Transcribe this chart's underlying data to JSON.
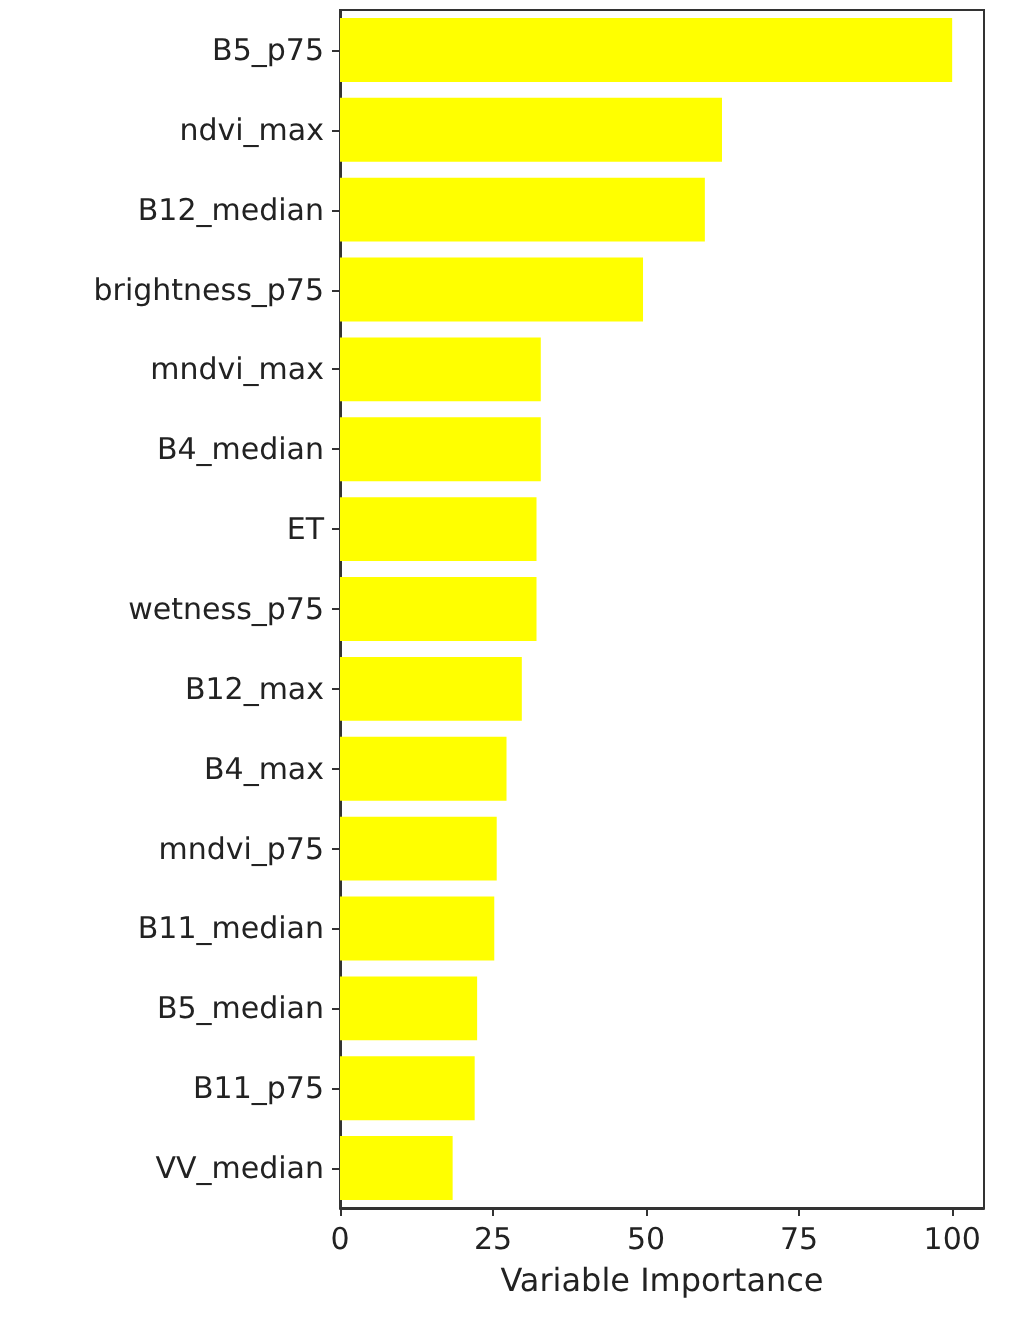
{
  "chart_data": {
    "type": "bar",
    "orientation": "horizontal",
    "xlabel": "Variable Importance",
    "categories": [
      "B5_p75",
      "ndvi_max",
      "B12_median",
      "brightness_p75",
      "mndvi_max",
      "B4_median",
      "ET",
      "wetness_p75",
      "B12_max",
      "B4_max",
      "mndvi_p75",
      "B11_median",
      "B5_median",
      "B11_p75",
      "VV_median"
    ],
    "values": [
      100,
      62.4,
      59.6,
      49.5,
      32.8,
      32.8,
      32.1,
      32.1,
      29.7,
      27.2,
      25.6,
      25.2,
      22.4,
      22.0,
      18.4
    ],
    "color": "#ffff00",
    "xlim": [
      0,
      105.2
    ],
    "xticks": [
      0,
      25,
      50,
      75,
      100
    ],
    "grid": false
  }
}
